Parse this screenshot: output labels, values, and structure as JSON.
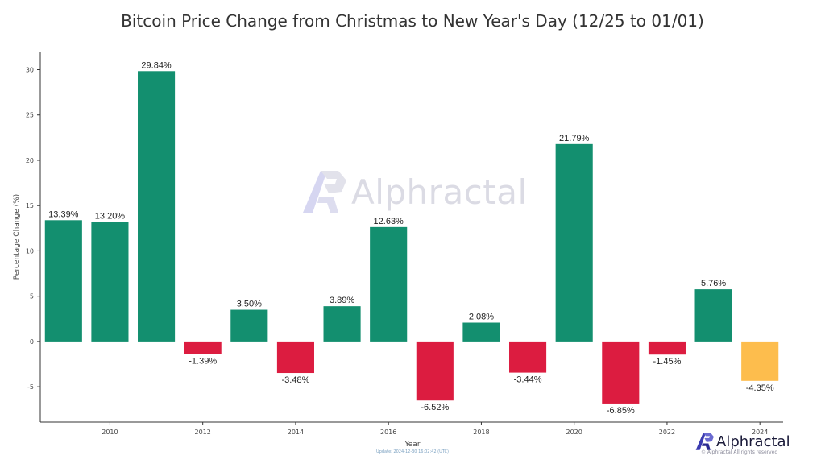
{
  "chart_data": {
    "type": "bar",
    "title": "Bitcoin Price Change from Christmas to New Year's Day (12/25 to 01/01)",
    "xlabel": "Year",
    "ylabel": "Percentage Change (%)",
    "categories": [
      2009,
      2010,
      2011,
      2012,
      2013,
      2014,
      2015,
      2016,
      2017,
      2018,
      2019,
      2020,
      2021,
      2022,
      2023,
      2024
    ],
    "values": [
      13.39,
      13.2,
      29.84,
      -1.39,
      3.5,
      -3.48,
      3.89,
      12.63,
      -6.52,
      2.08,
      -3.44,
      21.79,
      -6.85,
      -1.45,
      5.76,
      -4.35
    ],
    "value_labels": [
      "13.39%",
      "13.20%",
      "29.84%",
      "-1.39%",
      "3.50%",
      "-3.48%",
      "3.89%",
      "12.63%",
      "-6.52%",
      "2.08%",
      "-3.44%",
      "21.79%",
      "-6.85%",
      "-1.45%",
      "5.76%",
      "-4.35%"
    ],
    "colors": [
      "#138f6f",
      "#138f6f",
      "#138f6f",
      "#dc1c40",
      "#138f6f",
      "#dc1c40",
      "#138f6f",
      "#138f6f",
      "#dc1c40",
      "#138f6f",
      "#dc1c40",
      "#138f6f",
      "#dc1c40",
      "#dc1c40",
      "#138f6f",
      "#fdbd4d"
    ],
    "ylim": [
      -8.9,
      32
    ],
    "yticks": [
      -5,
      0,
      5,
      10,
      15,
      20,
      25,
      30
    ],
    "xtick_labels": [
      "2010",
      "2012",
      "2014",
      "2016",
      "2018",
      "2020",
      "2022",
      "2024"
    ],
    "xlim": [
      2008.5,
      2024.5
    ],
    "grid": false
  },
  "update_text": "Update: 2024-12-30 16:02:42 (UTC)",
  "watermark": {
    "text": "Alphractal",
    "color": "#7f7f9f"
  },
  "brand": {
    "name": "Alphractal",
    "copyright": "© Alphractal All rights reserved",
    "logo_color": "#3b3bb0"
  }
}
